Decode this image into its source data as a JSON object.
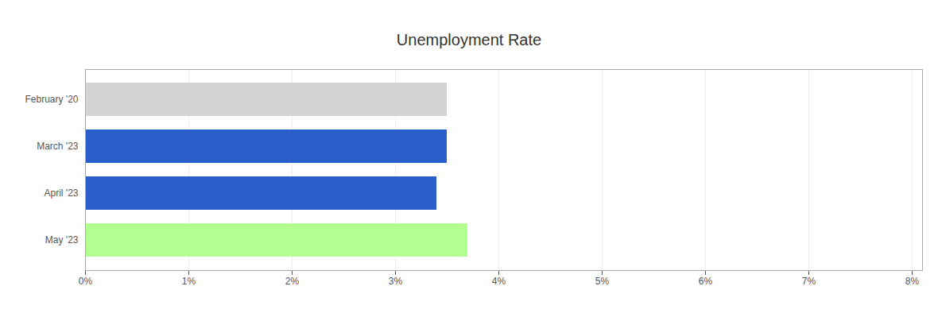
{
  "chart_data": {
    "type": "bar",
    "title": "Unemployment Rate",
    "orientation": "horizontal",
    "categories": [
      "February '20",
      "March '23",
      "April '23",
      "May '23"
    ],
    "values": [
      3.5,
      3.5,
      3.4,
      3.7
    ],
    "colors": [
      "#d3d3d3",
      "#2a5fcb",
      "#2a5fcb",
      "#b3ff8f"
    ],
    "xlim": [
      0,
      8.1
    ],
    "xticks": [
      {
        "value": 0,
        "label": "0%"
      },
      {
        "value": 1,
        "label": "1%"
      },
      {
        "value": 2,
        "label": "2%"
      },
      {
        "value": 3,
        "label": "3%"
      },
      {
        "value": 4,
        "label": "4%"
      },
      {
        "value": 5,
        "label": "5%"
      },
      {
        "value": 6,
        "label": "6%"
      },
      {
        "value": 7,
        "label": "7%"
      },
      {
        "value": 8,
        "label": "8%"
      }
    ],
    "grid": true
  }
}
